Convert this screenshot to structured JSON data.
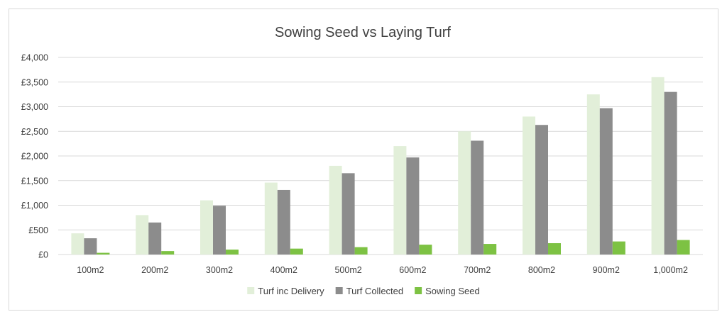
{
  "chart_data": {
    "type": "bar",
    "title": "Sowing Seed vs Laying Turf",
    "xlabel": "",
    "ylabel": "",
    "categories": [
      "100m2",
      "200m2",
      "300m2",
      "400m2",
      "500m2",
      "600m2",
      "700m2",
      "800m2",
      "900m2",
      "1,000m2"
    ],
    "series": [
      {
        "name": "Turf inc Delivery",
        "color": "#e2efd9",
        "values": [
          430,
          800,
          1100,
          1460,
          1800,
          2200,
          2500,
          2800,
          3250,
          3600
        ]
      },
      {
        "name": "Turf Collected",
        "color": "#8c8c8c",
        "values": [
          330,
          650,
          990,
          1310,
          1650,
          1970,
          2310,
          2630,
          2970,
          3300
        ]
      },
      {
        "name": "Sowing Seed",
        "color": "#7dc243",
        "values": [
          35,
          70,
          100,
          120,
          150,
          200,
          215,
          230,
          265,
          295
        ]
      }
    ],
    "ylim": [
      0,
      4000
    ],
    "y_ticks": [
      0,
      500,
      1000,
      1500,
      2000,
      2500,
      3000,
      3500,
      4000
    ],
    "y_tick_labels": [
      "£0",
      "£500",
      "£1,000",
      "£1,500",
      "£2,000",
      "£2,500",
      "£3,000",
      "£3,500",
      "£4,000"
    ],
    "grid": true,
    "gridline_color": "#d9d9d9",
    "legend_position": "bottom"
  }
}
